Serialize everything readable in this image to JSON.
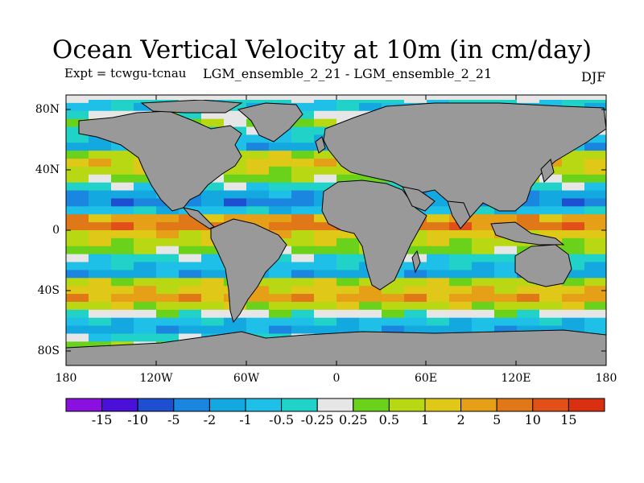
{
  "title": "Ocean Vertical Velocity at 10m (in cm/day)",
  "expt": "Expt = tcwgu-tcnau",
  "ensemble": "LGM_ensemble_2_21 - LGM_ensemble_2_21",
  "season": "DJF",
  "lat_ticks": [
    "80N",
    "40N",
    "0",
    "40S",
    "80S"
  ],
  "lon_ticks": [
    "180",
    "120W",
    "60W",
    "0",
    "60E",
    "120E",
    "180"
  ],
  "colorbar": {
    "labels": [
      "-15",
      "-10",
      "-5",
      "-2",
      "-1",
      "-0.5",
      "-0.25",
      "0.25",
      "0.5",
      "1",
      "2",
      "5",
      "10",
      "15"
    ],
    "colors": [
      "#8a10e0",
      "#4b10d8",
      "#1e4fd0",
      "#1a86e0",
      "#14a8e0",
      "#1ec0e8",
      "#20d2c8",
      "#e6e6e6",
      "#6ad21a",
      "#b8d814",
      "#e0c818",
      "#e6a018",
      "#e07818",
      "#e05018",
      "#d83010"
    ]
  },
  "colors": {
    "land": "#999999",
    "ocean_neutral": "#e6e6e6",
    "frame": "#000000"
  }
}
